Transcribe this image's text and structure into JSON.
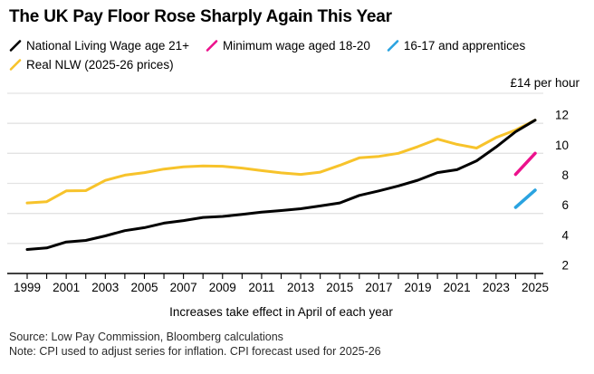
{
  "header": {
    "title": "The UK Pay Floor Rose Sharply Again This Year"
  },
  "legend": {
    "rows": [
      [
        {
          "label": "National Living Wage age 21+",
          "color": "#000000"
        },
        {
          "label": "Minimum wage aged 18-20",
          "color": "#ec118c"
        },
        {
          "label": "16-17 and apprentices",
          "color": "#2aa3e0"
        }
      ],
      [
        {
          "label": "Real NLW (2025-26 prices)",
          "color": "#f7c32b"
        }
      ]
    ]
  },
  "chart_data": {
    "type": "line",
    "title": "The UK Pay Floor Rose Sharply Again This Year",
    "unit_label": "£14 per hour",
    "xlabel": "Increases take effect in April of each year",
    "x_range": [
      1999,
      2025
    ],
    "x_tick_step": 1,
    "x_labeled_ticks": [
      1999,
      2001,
      2003,
      2005,
      2007,
      2009,
      2011,
      2013,
      2015,
      2017,
      2019,
      2021,
      2023,
      2025
    ],
    "ylim": [
      2,
      14
    ],
    "y_ticks": [
      2,
      4,
      6,
      8,
      10,
      12
    ],
    "y_gridlines": [
      4,
      6,
      8,
      10,
      12,
      14
    ],
    "grid": "horizontal",
    "legend_position": "top",
    "colors": {
      "grid": "#e3e3e3",
      "axis": "#000000"
    },
    "series": [
      {
        "name": "Real NLW (2025-26 prices)",
        "color": "#f7c32b",
        "width": 3,
        "x": [
          1999,
          2000,
          2001,
          2002,
          2003,
          2004,
          2005,
          2006,
          2007,
          2008,
          2009,
          2010,
          2011,
          2012,
          2013,
          2014,
          2015,
          2016,
          2017,
          2018,
          2019,
          2020,
          2021,
          2022,
          2023,
          2024,
          2025
        ],
        "values": [
          6.7,
          6.78,
          7.5,
          7.52,
          8.2,
          8.55,
          8.72,
          8.95,
          9.1,
          9.16,
          9.14,
          9.02,
          8.85,
          8.7,
          8.6,
          8.75,
          9.2,
          9.7,
          9.8,
          10.0,
          10.45,
          10.95,
          10.6,
          10.35,
          11.05,
          11.55,
          12.21
        ]
      },
      {
        "name": "National Living Wage age 21+",
        "color": "#000000",
        "width": 3,
        "x": [
          1999,
          2000,
          2001,
          2002,
          2003,
          2004,
          2005,
          2006,
          2007,
          2008,
          2009,
          2010,
          2011,
          2012,
          2013,
          2014,
          2015,
          2016,
          2017,
          2018,
          2019,
          2020,
          2021,
          2022,
          2023,
          2024,
          2025
        ],
        "values": [
          3.6,
          3.7,
          4.1,
          4.2,
          4.5,
          4.85,
          5.05,
          5.35,
          5.52,
          5.73,
          5.8,
          5.93,
          6.08,
          6.19,
          6.31,
          6.5,
          6.7,
          7.2,
          7.5,
          7.83,
          8.21,
          8.72,
          8.91,
          9.5,
          10.42,
          11.44,
          12.21
        ]
      },
      {
        "name": "Minimum wage aged 18-20",
        "color": "#ec118c",
        "width": 3.5,
        "x": [
          2024,
          2025
        ],
        "values": [
          8.6,
          10.0
        ]
      },
      {
        "name": "16-17 and apprentices",
        "color": "#2aa3e0",
        "width": 3.5,
        "x": [
          2024,
          2025
        ],
        "values": [
          6.4,
          7.55
        ]
      }
    ]
  },
  "footer": {
    "source": "Source: Low Pay Commission, Bloomberg calculations",
    "note": "Note: CPI used to adjust series for inflation. CPI forecast used for 2025-26"
  }
}
